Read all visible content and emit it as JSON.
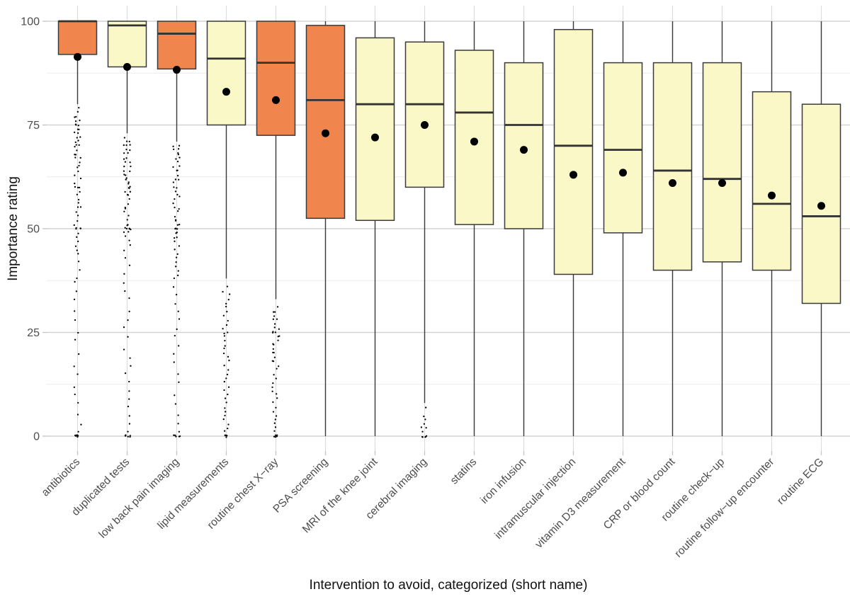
{
  "colors": {
    "background": "#ffffff",
    "box_fill_orange": "#F0854E",
    "box_fill_yellow": "#FAF8C7",
    "box_border": "#3A3A3A",
    "median_line": "#333333",
    "whisker": "#3A3A3A",
    "mean_dot": "#000000",
    "outlier_dot": "#000000",
    "grid_major": "#D4D4D4",
    "grid_minor": "#EBEBEB",
    "grid_vertical": "#DCDCDC",
    "axis_tick": "#C4C4C4",
    "tick_label": "#4D4D4D",
    "axis_title": "#111111"
  },
  "chart_data": {
    "type": "boxplot",
    "title": "",
    "xlabel": "Intervention to avoid, categorized (short name)",
    "ylabel": "Importance rating",
    "ylim": [
      0,
      100
    ],
    "yticks": [
      0,
      25,
      50,
      75,
      100
    ],
    "yticks_minor": [
      12.5,
      37.5,
      62.5,
      87.5
    ],
    "grid": "on",
    "legend": "none",
    "categories": [
      "antibiotics",
      "duplicated tests",
      "low back pain imaging",
      "lipid measurements",
      "routine chest X−ray",
      "PSA screening",
      "MRI of the knee joint",
      "cerebral imaging",
      "statins",
      "iron infusion",
      "intramuscular injection",
      "vitamin D3 measurement",
      "CRP or blood count",
      "routine check−up",
      "routine follow−up encounter",
      "routine ECG"
    ],
    "series": [
      {
        "label": "antibiotics",
        "fill": "orange",
        "q1": 92,
        "median": 100,
        "q3": 100,
        "mean": 91.4,
        "whisker_low": 80,
        "whisker_high": 100,
        "outliers": [
          79,
          78,
          77,
          77,
          76,
          76,
          75,
          75,
          75,
          74,
          74,
          73,
          73,
          72,
          72,
          71,
          71,
          70,
          70,
          70,
          69,
          68,
          68,
          67,
          67,
          66,
          65,
          65,
          64,
          63,
          62,
          61,
          60,
          60,
          60,
          59,
          58,
          57,
          56,
          55,
          55,
          54,
          53,
          52,
          51,
          50,
          50,
          50,
          50,
          49,
          48,
          47,
          46,
          45,
          44,
          42,
          40,
          38,
          37,
          35,
          33,
          30,
          28,
          25,
          23,
          20,
          17,
          15,
          12,
          10,
          8,
          5,
          3,
          1,
          0,
          0,
          0,
          0,
          0,
          0
        ]
      },
      {
        "label": "duplicated tests",
        "fill": "yellow",
        "q1": 89,
        "median": 99,
        "q3": 100,
        "mean": 89,
        "whisker_low": 73,
        "whisker_high": 100,
        "outliers": [
          72,
          71,
          71,
          70,
          70,
          70,
          69,
          69,
          68,
          68,
          67,
          67,
          66,
          66,
          65,
          65,
          64,
          64,
          63,
          63,
          62,
          62,
          61,
          61,
          60,
          60,
          60,
          59,
          59,
          58,
          58,
          57,
          56,
          55,
          55,
          54,
          53,
          52,
          51,
          51,
          50,
          50,
          50,
          50,
          50,
          50,
          49,
          49,
          48,
          47,
          46,
          45,
          43,
          41,
          39,
          37,
          35,
          33,
          30,
          28,
          26,
          24,
          21,
          19,
          17,
          15,
          13,
          11,
          9,
          7,
          5,
          3,
          1,
          0,
          0,
          0,
          0,
          0,
          0
        ]
      },
      {
        "label": "low back pain imaging",
        "fill": "orange",
        "q1": 88.5,
        "median": 97,
        "q3": 100,
        "mean": 88.3,
        "whisker_low": 71,
        "whisker_high": 100,
        "outliers": [
          70,
          70,
          69,
          69,
          68,
          68,
          67,
          67,
          66,
          65,
          65,
          64,
          64,
          63,
          62,
          62,
          61,
          60,
          60,
          59,
          58,
          58,
          57,
          56,
          55,
          55,
          54,
          53,
          52,
          52,
          51,
          51,
          50,
          50,
          50,
          50,
          49,
          49,
          48,
          48,
          47,
          46,
          45,
          44,
          43,
          42,
          41,
          40,
          39,
          38,
          36,
          34,
          32,
          30,
          28,
          26,
          24,
          22,
          20,
          18,
          15,
          13,
          10,
          8,
          5,
          3,
          1,
          0,
          0,
          0,
          0,
          0
        ]
      },
      {
        "label": "lipid measurements",
        "fill": "yellow",
        "q1": 75,
        "median": 91,
        "q3": 100,
        "mean": 83,
        "whisker_low": 38,
        "whisker_high": 100,
        "outliers": [
          36,
          35,
          34,
          33,
          32,
          31,
          30,
          29,
          28,
          27,
          26,
          25,
          25,
          24,
          23,
          22,
          21,
          20,
          19,
          18,
          17,
          16,
          15,
          14,
          13,
          12,
          11,
          10,
          9,
          8,
          7,
          6,
          5,
          4,
          3,
          2,
          1,
          0,
          0,
          0,
          0,
          0
        ]
      },
      {
        "label": "routine chest X−ray",
        "fill": "orange",
        "q1": 72.5,
        "median": 90,
        "q3": 100,
        "mean": 81,
        "whisker_low": 33,
        "whisker_high": 100,
        "outliers": [
          31,
          30,
          30,
          29,
          28,
          28,
          27,
          26,
          26,
          25,
          25,
          25,
          24,
          24,
          23,
          22,
          22,
          21,
          20,
          20,
          19,
          18,
          18,
          17,
          16,
          15,
          14,
          13,
          12,
          11,
          10,
          9,
          8,
          7,
          6,
          5,
          4,
          3,
          2,
          1,
          0,
          0,
          0,
          0,
          0
        ]
      },
      {
        "label": "PSA screening",
        "fill": "orange",
        "q1": 52.5,
        "median": 81,
        "q3": 99,
        "mean": 73,
        "whisker_low": 0,
        "whisker_high": 100,
        "outliers": []
      },
      {
        "label": "MRI of the knee joint",
        "fill": "yellow",
        "q1": 52,
        "median": 80,
        "q3": 96,
        "mean": 72,
        "whisker_low": 0,
        "whisker_high": 100,
        "outliers": []
      },
      {
        "label": "cerebral imaging",
        "fill": "yellow",
        "q1": 60,
        "median": 80,
        "q3": 95,
        "mean": 75,
        "whisker_low": 8,
        "whisker_high": 100,
        "outliers": [
          7,
          5,
          4,
          3,
          2,
          2,
          1,
          0,
          0,
          0,
          0,
          0
        ]
      },
      {
        "label": "statins",
        "fill": "yellow",
        "q1": 51,
        "median": 78,
        "q3": 93,
        "mean": 71,
        "whisker_low": 0,
        "whisker_high": 100,
        "outliers": []
      },
      {
        "label": "iron infusion",
        "fill": "yellow",
        "q1": 50,
        "median": 75,
        "q3": 90,
        "mean": 69,
        "whisker_low": 0,
        "whisker_high": 100,
        "outliers": []
      },
      {
        "label": "intramuscular injection",
        "fill": "yellow",
        "q1": 39,
        "median": 70,
        "q3": 98,
        "mean": 63,
        "whisker_low": 0,
        "whisker_high": 100,
        "outliers": []
      },
      {
        "label": "vitamin D3 measurement",
        "fill": "yellow",
        "q1": 49,
        "median": 69,
        "q3": 90,
        "mean": 63.5,
        "whisker_low": 0,
        "whisker_high": 100,
        "outliers": []
      },
      {
        "label": "CRP or blood count",
        "fill": "yellow",
        "q1": 40,
        "median": 64,
        "q3": 90,
        "mean": 61,
        "whisker_low": 0,
        "whisker_high": 100,
        "outliers": []
      },
      {
        "label": "routine check−up",
        "fill": "yellow",
        "q1": 42,
        "median": 62,
        "q3": 90,
        "mean": 61,
        "whisker_low": 0,
        "whisker_high": 100,
        "outliers": []
      },
      {
        "label": "routine follow−up encounter",
        "fill": "yellow",
        "q1": 40,
        "median": 56,
        "q3": 83,
        "mean": 58,
        "whisker_low": 0,
        "whisker_high": 100,
        "outliers": []
      },
      {
        "label": "routine ECG",
        "fill": "yellow",
        "q1": 32,
        "median": 53,
        "q3": 80,
        "mean": 55.5,
        "whisker_low": 0,
        "whisker_high": 100,
        "outliers": []
      }
    ]
  }
}
